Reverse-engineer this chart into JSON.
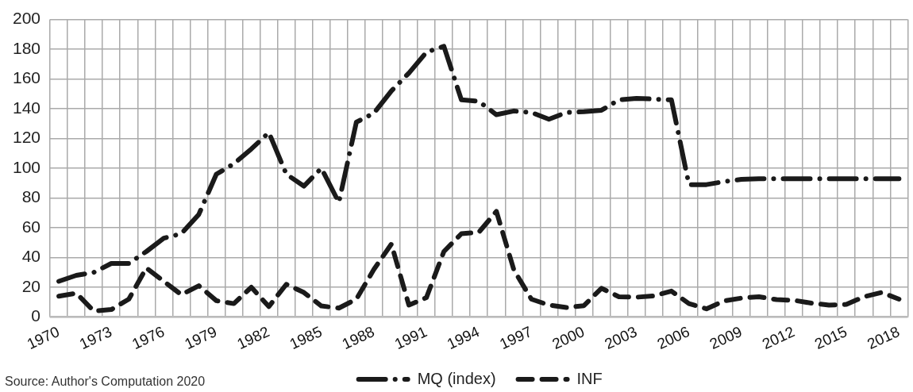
{
  "chart_data": {
    "type": "line",
    "categories": [
      "1970",
      null,
      null,
      "1973",
      null,
      null,
      "1976",
      null,
      null,
      "1979",
      null,
      null,
      "1982",
      null,
      null,
      "1985",
      null,
      null,
      "1988",
      null,
      null,
      "1991",
      null,
      null,
      "1994",
      null,
      null,
      "1997",
      null,
      null,
      "2000",
      null,
      null,
      "2003",
      null,
      null,
      "2006",
      null,
      null,
      "2009",
      null,
      null,
      "2012",
      null,
      null,
      "2015",
      null,
      null,
      "2018"
    ],
    "series": [
      {
        "name": "MQ (index)",
        "color": "#1a1a1a",
        "line_style": "dashdot",
        "values": [
          24,
          28,
          30,
          36,
          36,
          44,
          53,
          56,
          69,
          96,
          103,
          113,
          124,
          96,
          88,
          100,
          77,
          131,
          137,
          152,
          164,
          178,
          182,
          146,
          145,
          136,
          138.5,
          137.5,
          133,
          137.5,
          138,
          139,
          146,
          147,
          146.5,
          146,
          89,
          89,
          91,
          92.5,
          93,
          93,
          93,
          93,
          93,
          93,
          93,
          93,
          93
        ]
      },
      {
        "name": "INF",
        "color": "#1a1a1a",
        "line_style": "dashed",
        "values": [
          14,
          16,
          4,
          5,
          12,
          33,
          24,
          15,
          21,
          11,
          9,
          20,
          7,
          22,
          16.5,
          7.4,
          6,
          12,
          32,
          49,
          8,
          13,
          44,
          56,
          57,
          71,
          31.6,
          12,
          8,
          6.4,
          7.6,
          19.3,
          13.6,
          13.3,
          14.2,
          17.4,
          9,
          5.5,
          10.8,
          12.7,
          13.6,
          11.7,
          11.2,
          9.3,
          8,
          8.5,
          13.6,
          16.5,
          12
        ]
      }
    ],
    "ylim": [
      0,
      200
    ],
    "yticks": [
      0,
      20,
      40,
      60,
      80,
      100,
      120,
      140,
      160,
      180,
      200
    ],
    "grid": true,
    "legend": "bottom",
    "marker": "none",
    "annotations": [
      "Source: Author's Computation 2020"
    ]
  }
}
